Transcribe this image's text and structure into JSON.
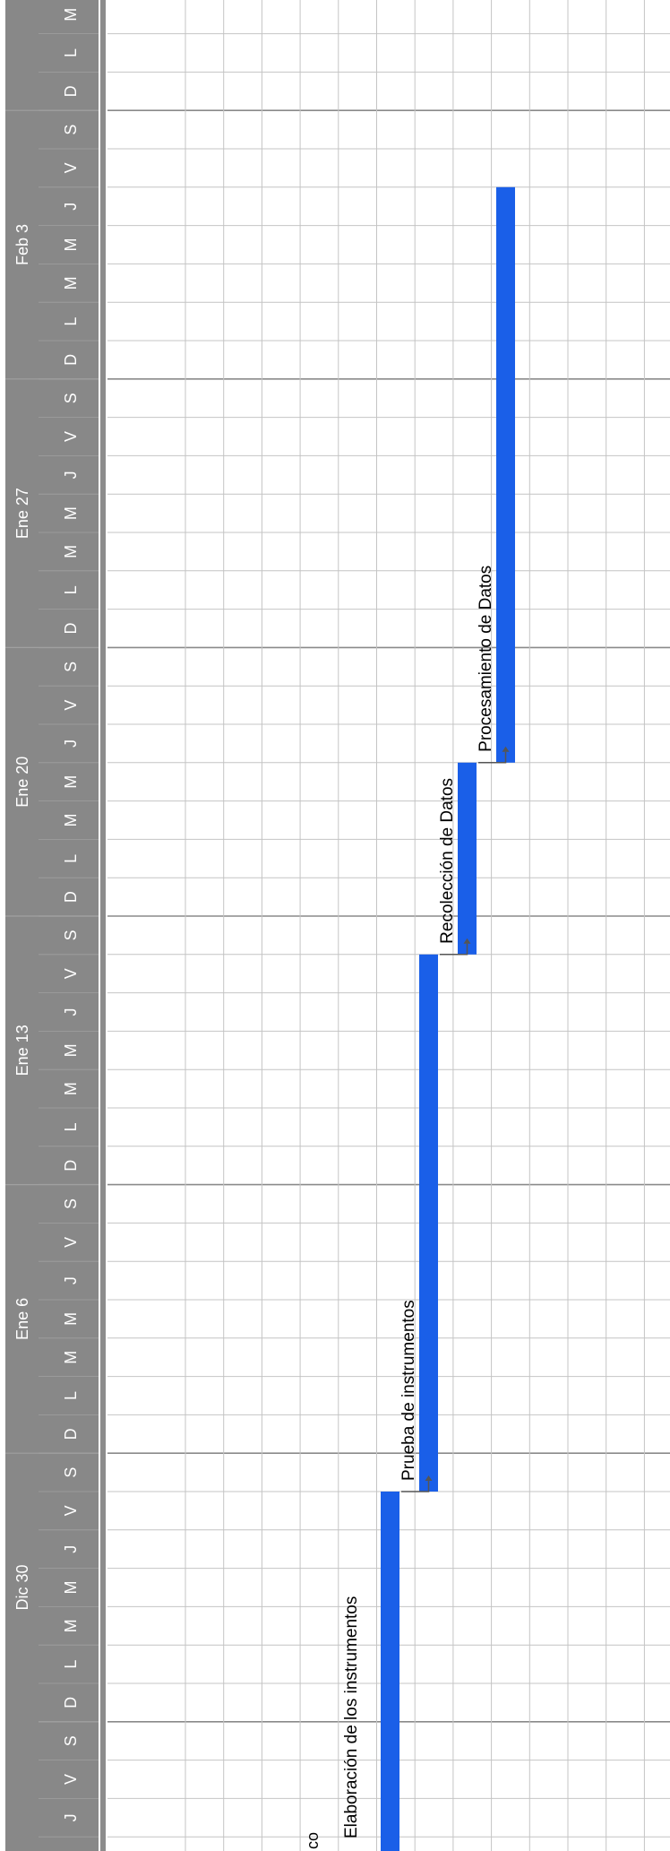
{
  "timeline": {
    "weeks": [
      "Dic 30",
      "Ene 6",
      "Ene 13",
      "Ene 20",
      "Ene 27",
      "Feb 3",
      "Feb"
    ],
    "day_letters": [
      "D",
      "L",
      "M",
      "M",
      "J",
      "V",
      "S"
    ],
    "left_partial_days": [
      "J",
      "V",
      "S"
    ],
    "right_partial_days": [
      "D",
      "L",
      "M",
      "M"
    ]
  },
  "partial_labels": {
    "row_text": "co",
    "bar_label_cut": "Elaboración de los instrumentos"
  },
  "colors": {
    "header_bg": "#888888",
    "header_text": "#ffffff",
    "grid": "#c4c4c4",
    "week_line": "#8a8a8a",
    "bar": "#1a5fe8",
    "connector": "#555555"
  },
  "chart_data": {
    "type": "gantt",
    "tasks": [
      {
        "name": "Elaboración de los instrumentos",
        "start": "Dic 26",
        "end": "Ene 5"
      },
      {
        "name": "Prueba de instrumentos",
        "start": "Ene 5",
        "end": "Ene 19"
      },
      {
        "name": "Recolección de Datos",
        "start": "Ene 19",
        "end": "Ene 24"
      },
      {
        "name": "Procesamiento de Datos",
        "start": "Ene 24",
        "end": "Feb 8"
      }
    ],
    "dependencies": [
      [
        "Elaboración de los instrumentos",
        "Prueba de instrumentos"
      ],
      [
        "Prueba de instrumentos",
        "Recolección de Datos"
      ],
      [
        "Recolección de Datos",
        "Procesamiento de Datos"
      ]
    ]
  }
}
